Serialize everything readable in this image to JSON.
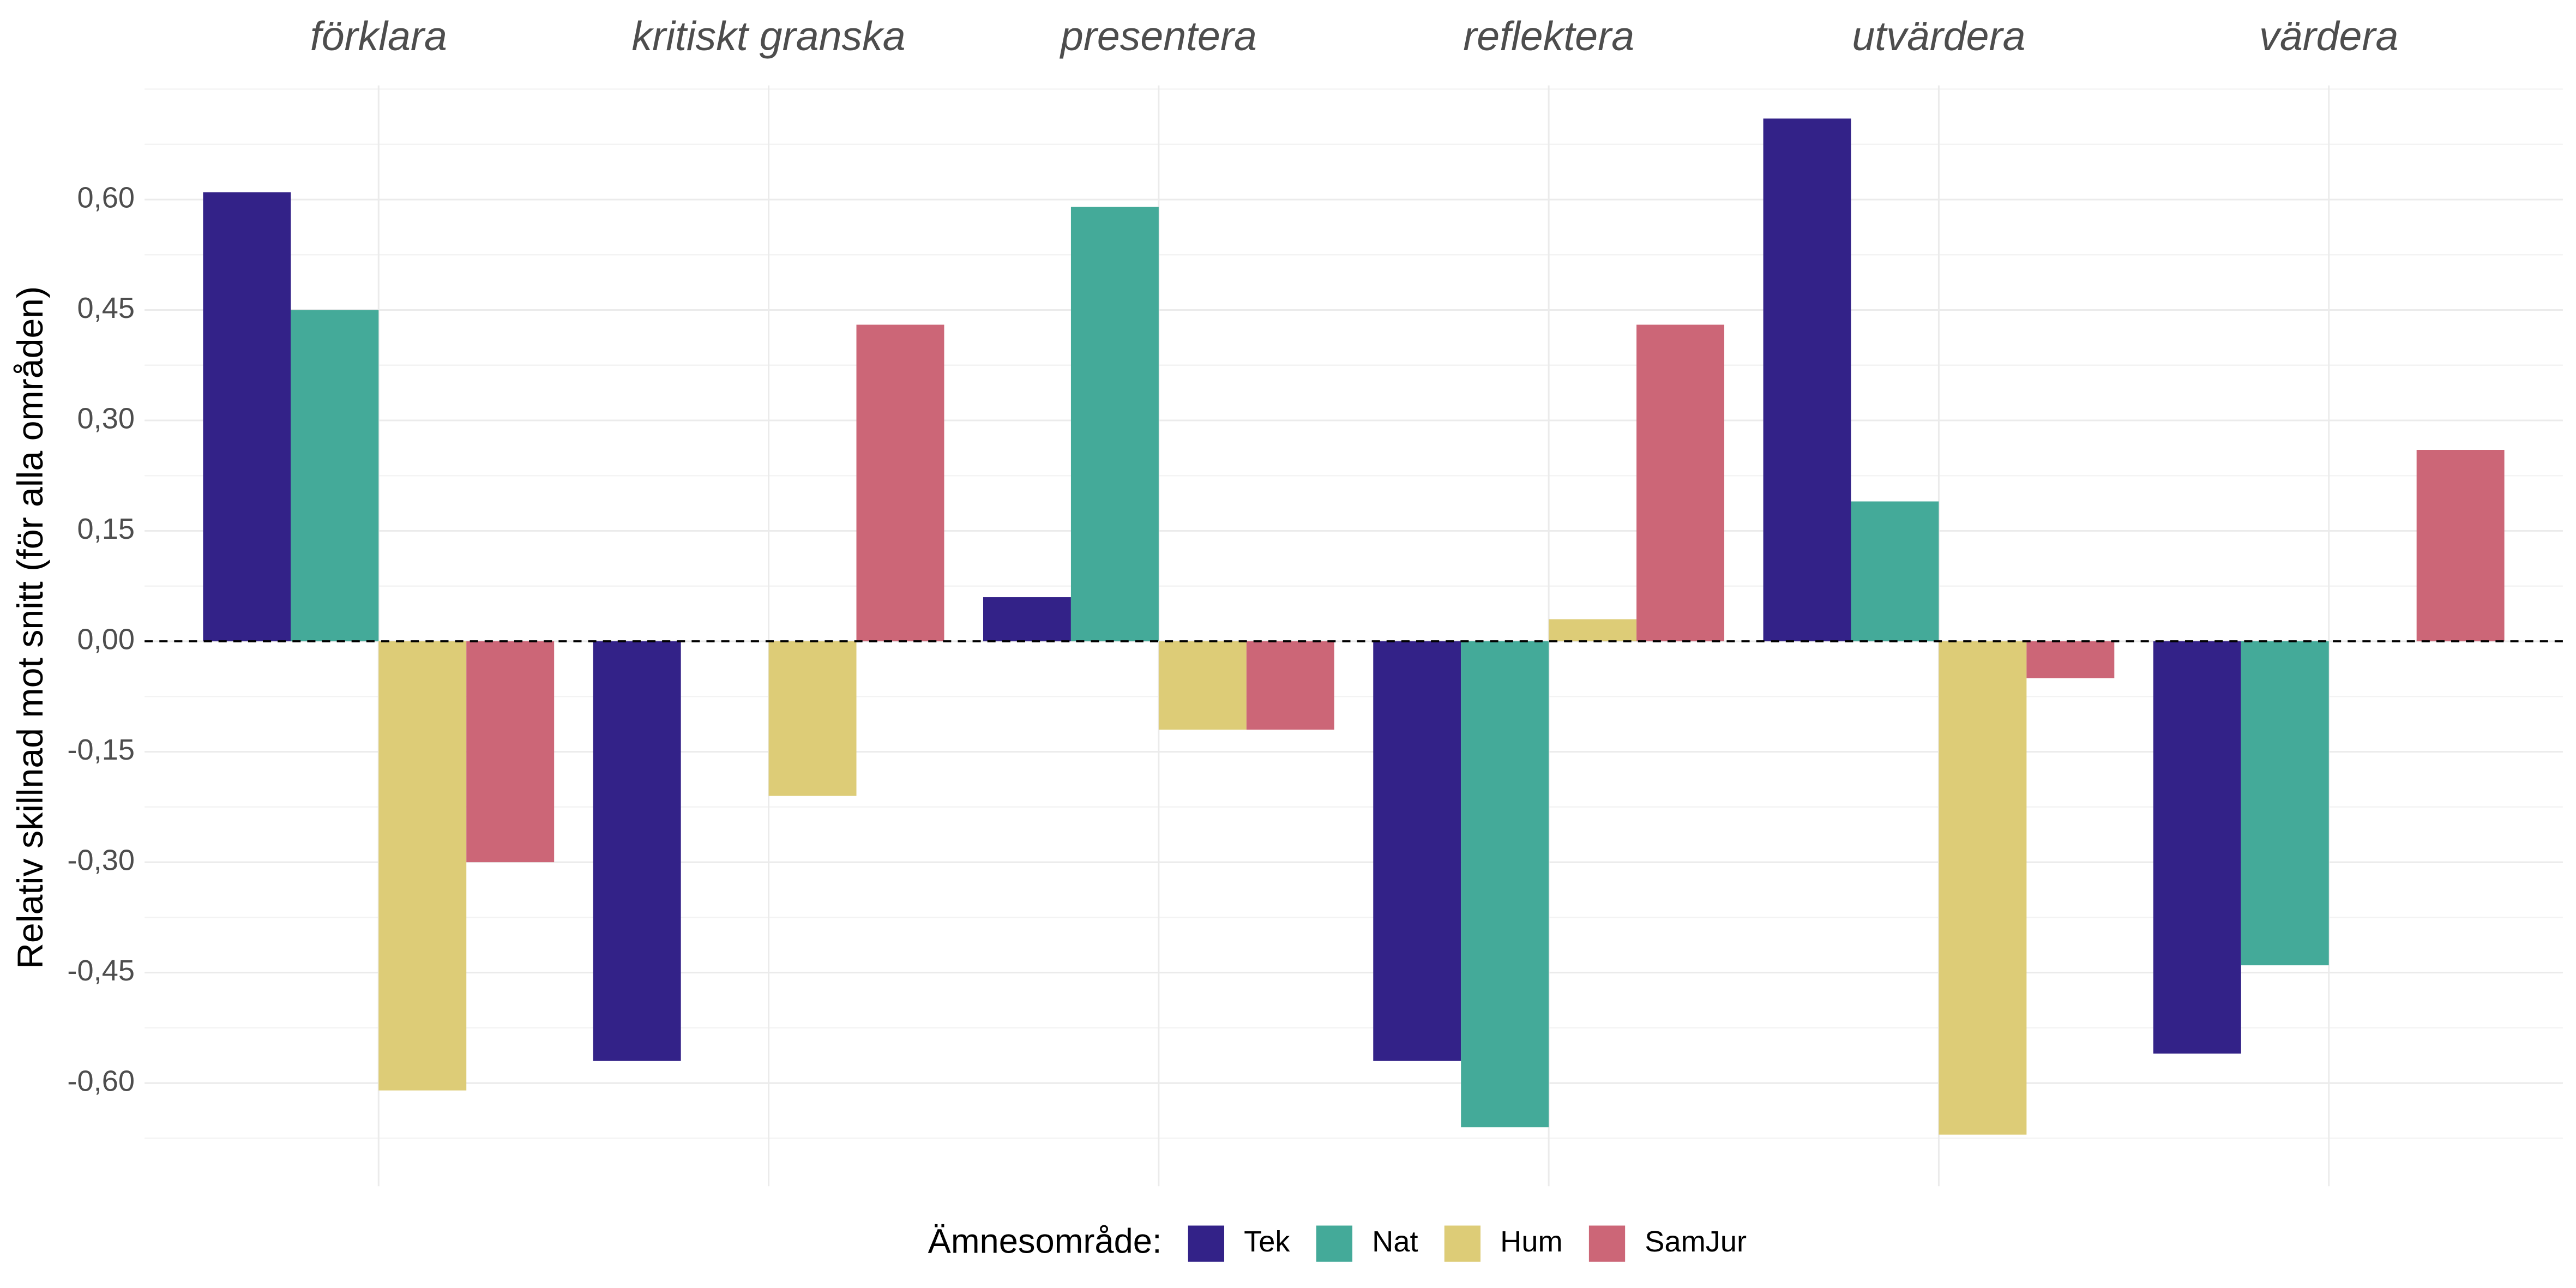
{
  "chart_data": {
    "type": "bar",
    "categories": [
      "förklara",
      "kritiskt granska",
      "presentera",
      "reflektera",
      "utvärdera",
      "värdera"
    ],
    "series": [
      {
        "name": "Tek",
        "color": "#332288",
        "values": [
          0.61,
          -0.57,
          0.06,
          -0.57,
          0.71,
          -0.56
        ]
      },
      {
        "name": "Nat",
        "color": "#44AA99",
        "values": [
          0.45,
          null,
          0.59,
          -0.66,
          0.19,
          -0.44
        ]
      },
      {
        "name": "Hum",
        "color": "#DDCC77",
        "values": [
          -0.61,
          -0.21,
          -0.12,
          0.03,
          -0.67,
          null
        ]
      },
      {
        "name": "SamJur",
        "color": "#CC6677",
        "values": [
          -0.3,
          0.43,
          -0.12,
          0.43,
          -0.05,
          0.26
        ]
      }
    ],
    "y_axis_label": "Relativ skillnad mot snitt (för alla områden)",
    "legend_title": "Ämnesområde:",
    "legend_position": "bottom",
    "grid": true,
    "reference_line": 0,
    "ylim": [
      -0.74,
      0.755
    ],
    "yticks": [
      {
        "value": -0.6,
        "label": "-0,60"
      },
      {
        "value": -0.45,
        "label": "-0,45"
      },
      {
        "value": -0.3,
        "label": "-0,30"
      },
      {
        "value": -0.15,
        "label": "-0,15"
      },
      {
        "value": 0,
        "label": "0,00"
      },
      {
        "value": 0.15,
        "label": "0,15"
      },
      {
        "value": 0.3,
        "label": "0,30"
      },
      {
        "value": 0.45,
        "label": "0,45"
      },
      {
        "value": 0.6,
        "label": "0,60"
      }
    ]
  }
}
